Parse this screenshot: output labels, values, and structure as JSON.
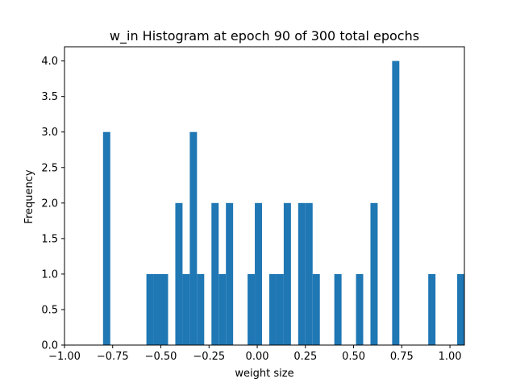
{
  "chart_data": {
    "type": "bar",
    "title": "w_in Histogram at epoch 90 of 300 total epochs",
    "xlabel": "weight size",
    "ylabel": "Frequency",
    "xlim": [
      -1.0,
      1.075
    ],
    "ylim": [
      0,
      4.2
    ],
    "bin_width": 0.0375,
    "color": "#1f77b4",
    "xticks": [
      "−1.00",
      "−0.75",
      "−0.50",
      "−0.25",
      "0.00",
      "0.25",
      "0.50",
      "0.75",
      "1.00"
    ],
    "xtick_values": [
      -1.0,
      -0.75,
      -0.5,
      -0.25,
      0.0,
      0.25,
      0.5,
      0.75,
      1.0
    ],
    "yticks": [
      "0.0",
      "0.5",
      "1.0",
      "1.5",
      "2.0",
      "2.5",
      "3.0",
      "3.5",
      "4.0"
    ],
    "ytick_values": [
      0.0,
      0.5,
      1.0,
      1.5,
      2.0,
      2.5,
      3.0,
      3.5,
      4.0
    ],
    "bins": [
      {
        "x": -0.8,
        "count": 3
      },
      {
        "x": -0.575,
        "count": 1
      },
      {
        "x": -0.5375,
        "count": 1
      },
      {
        "x": -0.5,
        "count": 1
      },
      {
        "x": -0.425,
        "count": 2
      },
      {
        "x": -0.3875,
        "count": 1
      },
      {
        "x": -0.35,
        "count": 3
      },
      {
        "x": -0.3125,
        "count": 1
      },
      {
        "x": -0.2375,
        "count": 2
      },
      {
        "x": -0.2,
        "count": 1
      },
      {
        "x": -0.1625,
        "count": 2
      },
      {
        "x": -0.05,
        "count": 1
      },
      {
        "x": -0.0125,
        "count": 2
      },
      {
        "x": 0.0625,
        "count": 1
      },
      {
        "x": 0.1,
        "count": 1
      },
      {
        "x": 0.1375,
        "count": 2
      },
      {
        "x": 0.2125,
        "count": 2
      },
      {
        "x": 0.25,
        "count": 2
      },
      {
        "x": 0.2875,
        "count": 1
      },
      {
        "x": 0.4,
        "count": 1
      },
      {
        "x": 0.5125,
        "count": 1
      },
      {
        "x": 0.5875,
        "count": 2
      },
      {
        "x": 0.7,
        "count": 4
      },
      {
        "x": 0.8875,
        "count": 1
      },
      {
        "x": 1.0375,
        "count": 1
      }
    ]
  }
}
